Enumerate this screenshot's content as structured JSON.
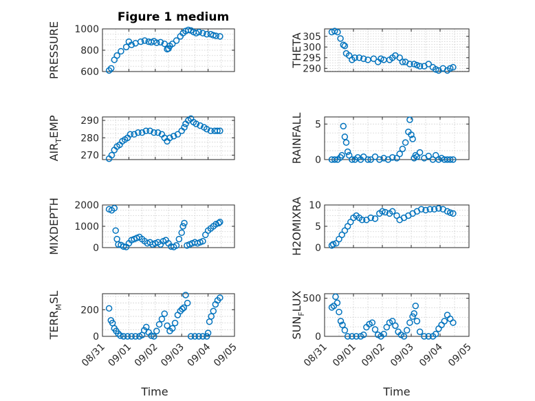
{
  "figure_title": "Figure 1 medium",
  "colors": {
    "marker": "#0072BD",
    "axes": "#262626",
    "grid": "#c8c8c8"
  },
  "chart_data": [
    {
      "id": "pressure",
      "type": "scatter",
      "ylabel": "PRESSURE",
      "ylabel_sub": null,
      "ylim": [
        600,
        1000
      ],
      "yticks": [
        600,
        800,
        1000
      ],
      "xlim": [
        0,
        5
      ],
      "grid": true,
      "marker": "circle",
      "x": [
        0.25,
        0.33,
        0.45,
        0.55,
        0.7,
        0.9,
        1.0,
        1.1,
        1.25,
        1.45,
        1.6,
        1.75,
        1.85,
        1.95,
        2.05,
        2.2,
        2.35,
        2.45,
        2.5,
        2.55,
        2.65,
        2.8,
        2.95,
        3.05,
        3.15,
        3.25,
        3.35,
        3.45,
        3.55,
        3.65,
        3.8,
        3.95,
        4.1,
        4.2,
        4.3,
        4.45
      ],
      "y": [
        610,
        630,
        710,
        750,
        790,
        830,
        880,
        850,
        865,
        880,
        890,
        880,
        875,
        885,
        870,
        875,
        860,
        810,
        815,
        840,
        860,
        890,
        930,
        960,
        980,
        990,
        985,
        970,
        960,
        970,
        960,
        950,
        950,
        940,
        935,
        930
      ]
    },
    {
      "id": "theta",
      "type": "scatter",
      "ylabel": "THETA",
      "ylabel_sub": null,
      "ylim": [
        288.5,
        308.5
      ],
      "yticks": [
        290,
        295,
        300,
        305
      ],
      "xlim": [
        0,
        5
      ],
      "grid": true,
      "marker": "circle",
      "x": [
        0.25,
        0.35,
        0.45,
        0.55,
        0.65,
        0.7,
        0.75,
        0.85,
        0.95,
        1.05,
        1.2,
        1.35,
        1.5,
        1.7,
        1.85,
        1.95,
        2.05,
        2.25,
        2.35,
        2.45,
        2.6,
        2.7,
        2.8,
        2.95,
        3.1,
        3.2,
        3.3,
        3.45,
        3.6,
        3.75,
        3.85,
        3.95,
        4.1,
        4.25,
        4.35,
        4.45
      ],
      "y": [
        307,
        307.5,
        307,
        304,
        301,
        300.5,
        297,
        296,
        294,
        295,
        295,
        294.5,
        294,
        294.5,
        293,
        294.5,
        294,
        294,
        295,
        296,
        295,
        293,
        293,
        292,
        292,
        291.5,
        291,
        291,
        292,
        290.5,
        289.5,
        289,
        290,
        289,
        290,
        290.5
      ]
    },
    {
      "id": "air_temp",
      "type": "scatter",
      "ylabel": "AIR",
      "ylabel_sub": "T",
      "ylabel_suffix": "EMP",
      "ylim": [
        267.5,
        292
      ],
      "yticks": [
        270,
        280,
        290
      ],
      "xlim": [
        0,
        5
      ],
      "grid": true,
      "marker": "circle",
      "x": [
        0.25,
        0.35,
        0.45,
        0.55,
        0.65,
        0.75,
        0.85,
        0.95,
        1.05,
        1.2,
        1.35,
        1.5,
        1.65,
        1.8,
        1.95,
        2.1,
        2.25,
        2.35,
        2.45,
        2.55,
        2.7,
        2.85,
        3.0,
        3.1,
        3.15,
        3.25,
        3.35,
        3.45,
        3.55,
        3.7,
        3.85,
        3.95,
        4.1,
        4.25,
        4.35,
        4.45
      ],
      "y": [
        268,
        270,
        273,
        275,
        276,
        278,
        279,
        280,
        282,
        282,
        283,
        283,
        284,
        284,
        283,
        283,
        282,
        280,
        278,
        280,
        281,
        282,
        284,
        286,
        288,
        290,
        291,
        289,
        288,
        287,
        286,
        285,
        284,
        284,
        284,
        284
      ]
    },
    {
      "id": "rainfall",
      "type": "scatter",
      "ylabel": "RAINFALL",
      "ylabel_sub": null,
      "ylim": [
        0,
        6
      ],
      "yticks": [
        0,
        5
      ],
      "xlim": [
        0,
        5
      ],
      "grid": true,
      "marker": "circle",
      "x": [
        0.25,
        0.35,
        0.45,
        0.55,
        0.6,
        0.65,
        0.7,
        0.75,
        0.8,
        0.85,
        0.95,
        1.05,
        1.15,
        1.25,
        1.35,
        1.5,
        1.6,
        1.75,
        1.9,
        2.05,
        2.2,
        2.35,
        2.5,
        2.6,
        2.7,
        2.8,
        2.9,
        2.95,
        3.0,
        3.05,
        3.1,
        3.15,
        3.2,
        3.3,
        3.45,
        3.6,
        3.75,
        3.85,
        3.95,
        4.05,
        4.15,
        4.25,
        4.35,
        4.45
      ],
      "y": [
        0,
        0,
        0,
        0.3,
        0.6,
        4.7,
        3.2,
        2.4,
        1.1,
        0.6,
        0,
        0,
        0.3,
        0,
        0.4,
        0,
        0,
        0.4,
        0,
        0.2,
        0,
        0.3,
        0.2,
        0.8,
        1.5,
        2.4,
        3.9,
        5.6,
        3.5,
        2.9,
        0.2,
        0.6,
        0.4,
        1.0,
        0.2,
        0.5,
        0,
        0.6,
        0,
        0.2,
        0,
        0,
        0,
        0
      ]
    },
    {
      "id": "mixdepth",
      "type": "scatter",
      "ylabel": "MIXDEPTH",
      "ylabel_sub": null,
      "ylim": [
        0,
        2000
      ],
      "yticks": [
        0,
        1000,
        2000
      ],
      "xlim": [
        0,
        5
      ],
      "grid": true,
      "marker": "circle",
      "x": [
        0.25,
        0.35,
        0.45,
        0.5,
        0.55,
        0.6,
        0.7,
        0.8,
        0.9,
        1.0,
        1.1,
        1.2,
        1.3,
        1.4,
        1.5,
        1.6,
        1.7,
        1.8,
        1.9,
        2.0,
        2.1,
        2.2,
        2.3,
        2.4,
        2.5,
        2.6,
        2.7,
        2.8,
        2.9,
        3.0,
        3.05,
        3.1,
        3.2,
        3.3,
        3.4,
        3.5,
        3.6,
        3.7,
        3.8,
        3.9,
        4.0,
        4.1,
        4.2,
        4.3,
        4.4,
        4.45
      ],
      "y": [
        1800,
        1750,
        1850,
        800,
        400,
        150,
        120,
        50,
        30,
        200,
        350,
        400,
        450,
        500,
        400,
        300,
        200,
        250,
        150,
        200,
        250,
        150,
        300,
        350,
        200,
        50,
        30,
        100,
        400,
        700,
        1000,
        1150,
        100,
        150,
        200,
        250,
        200,
        250,
        300,
        600,
        800,
        900,
        1000,
        1100,
        1150,
        1200
      ]
    },
    {
      "id": "h2omixra",
      "type": "scatter",
      "ylabel": "H2OMIXRA",
      "ylabel_sub": null,
      "ylim": [
        0,
        10
      ],
      "yticks": [
        0,
        5,
        10
      ],
      "xlim": [
        0,
        5
      ],
      "grid": true,
      "marker": "circle",
      "x": [
        0.25,
        0.3,
        0.4,
        0.5,
        0.6,
        0.7,
        0.8,
        0.9,
        1.0,
        1.1,
        1.2,
        1.3,
        1.45,
        1.6,
        1.75,
        1.9,
        2.0,
        2.1,
        2.25,
        2.35,
        2.5,
        2.6,
        2.75,
        2.9,
        3.05,
        3.2,
        3.35,
        3.5,
        3.65,
        3.8,
        3.95,
        4.1,
        4.25,
        4.35,
        4.45
      ],
      "y": [
        0.5,
        0.8,
        1,
        2,
        3,
        4,
        5,
        6,
        7,
        7.5,
        7,
        6.5,
        6.5,
        7,
        6.8,
        8,
        8.5,
        8.3,
        8,
        8.5,
        7.5,
        6.5,
        7,
        7.5,
        8,
        8.5,
        9,
        8.8,
        9,
        9,
        9.2,
        9,
        8.5,
        8.2,
        8
      ]
    },
    {
      "id": "terr_msl",
      "type": "scatter",
      "ylabel": "TERR",
      "ylabel_sub": "M",
      "ylabel_suffix": "SL",
      "ylim": [
        0,
        320
      ],
      "yticks": [
        0,
        200
      ],
      "xlim": [
        0,
        5
      ],
      "grid": true,
      "marker": "circle",
      "x": [
        0.25,
        0.32,
        0.38,
        0.45,
        0.52,
        0.6,
        0.68,
        0.8,
        0.95,
        1.1,
        1.25,
        1.4,
        1.5,
        1.58,
        1.66,
        1.75,
        1.85,
        1.95,
        2.05,
        2.15,
        2.25,
        2.35,
        2.45,
        2.55,
        2.65,
        2.75,
        2.85,
        2.95,
        3.02,
        3.08,
        3.15,
        3.22,
        3.35,
        3.5,
        3.65,
        3.8,
        3.95,
        4.0,
        4.05,
        4.12,
        4.2,
        4.28,
        4.36,
        4.45
      ],
      "y": [
        210,
        120,
        100,
        60,
        40,
        20,
        5,
        0,
        0,
        0,
        0,
        0,
        10,
        45,
        70,
        30,
        5,
        0,
        40,
        90,
        130,
        170,
        80,
        40,
        60,
        100,
        160,
        190,
        205,
        215,
        310,
        250,
        0,
        0,
        0,
        0,
        0,
        25,
        110,
        150,
        190,
        240,
        270,
        290
      ]
    },
    {
      "id": "sun_flux",
      "type": "scatter",
      "ylabel": "SUN",
      "ylabel_sub": "F",
      "ylabel_suffix": "LUX",
      "ylim": [
        0,
        560
      ],
      "yticks": [
        0,
        500
      ],
      "xlim": [
        0,
        5
      ],
      "grid": true,
      "marker": "circle",
      "x": [
        0.25,
        0.32,
        0.38,
        0.44,
        0.5,
        0.56,
        0.62,
        0.7,
        0.8,
        0.95,
        1.1,
        1.25,
        1.35,
        1.45,
        1.55,
        1.65,
        1.75,
        1.85,
        1.95,
        2.05,
        2.15,
        2.25,
        2.35,
        2.45,
        2.55,
        2.65,
        2.75,
        2.85,
        2.95,
        3.05,
        3.1,
        3.15,
        3.2,
        3.3,
        3.45,
        3.6,
        3.75,
        3.85,
        3.95,
        4.05,
        4.15,
        4.25,
        4.35,
        4.45
      ],
      "y": [
        380,
        400,
        520,
        440,
        320,
        200,
        150,
        80,
        0,
        0,
        0,
        0,
        20,
        120,
        160,
        180,
        90,
        20,
        0,
        30,
        120,
        180,
        200,
        140,
        60,
        20,
        0,
        80,
        180,
        260,
        300,
        400,
        200,
        60,
        0,
        0,
        0,
        30,
        100,
        150,
        200,
        280,
        230,
        180
      ]
    }
  ],
  "x_axis": {
    "label": "Time",
    "ticks": [
      0,
      1,
      2,
      3,
      4,
      5
    ],
    "tick_labels": [
      "08/31",
      "09/01",
      "09/02",
      "09/03",
      "09/04",
      "09/05"
    ]
  }
}
